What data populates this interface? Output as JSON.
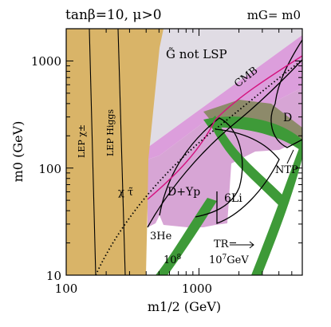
{
  "chart_data": {
    "type": "area",
    "title": "tanβ=10, μ>0",
    "subtitle": "mG= m0",
    "xlabel": "m1/2 (GeV)",
    "ylabel": "m0 (GeV)",
    "xscale": "log",
    "yscale": "log",
    "xlim": [
      100,
      6000
    ],
    "ylim": [
      10,
      2000
    ],
    "xticks": [
      "100",
      "1000"
    ],
    "yticks": [
      "10",
      "100",
      "1000"
    ],
    "grid": false,
    "colors": {
      "lep": "#d9b468",
      "gravitino_not_lsp": "#e0dce4",
      "cmb": "#dc9edc",
      "bbn_pink": "#d7a5d5",
      "green": "#3e9a38",
      "olive": "#8d8a6a",
      "magenta_line": "#d4127e"
    },
    "regions": [
      {
        "label": "G̃ not LSP"
      },
      {
        "label": "CMB"
      },
      {
        "label": "D"
      },
      {
        "label": "D+Yp"
      },
      {
        "label": "6Li"
      },
      {
        "label": "3He"
      },
      {
        "label": "NTP"
      }
    ],
    "curves": [
      {
        "label": "LEP χ±"
      },
      {
        "label": "LEP Higgs"
      },
      {
        "label": "χ τ̃"
      }
    ],
    "annotations": {
      "tr_label": "TR=",
      "tr_1e8": "10",
      "tr_1e8_exp": "8",
      "tr_1e7": "10",
      "tr_1e7_exp": "7",
      "tr_unit": "GeV"
    }
  }
}
